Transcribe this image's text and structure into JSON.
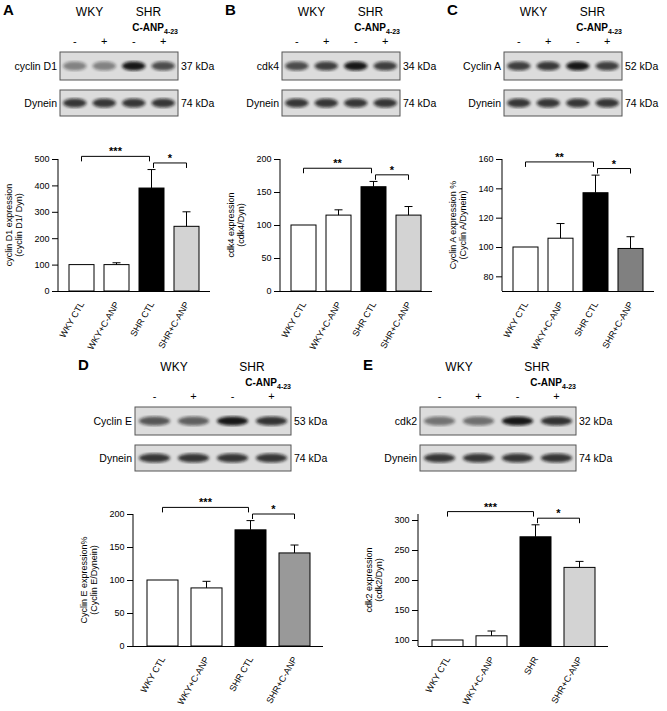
{
  "chart_data": [
    {
      "type": "bar",
      "panel": "A",
      "blot": {
        "groups": [
          "WKY",
          "SHR"
        ],
        "treatment": "C-ANP",
        "treatment_subscript": "4-23",
        "signs": [
          "-",
          "+",
          "-",
          "+"
        ],
        "protein": "cyclin D1",
        "protein_kda": "37 kDa",
        "loading": "Dynein",
        "loading_kda": "74 kDa"
      },
      "y_label": [
        "cyclin D1 expression",
        "(cyclin D1/ Dyn)"
      ],
      "categories": [
        "WKY CTL",
        "WKY+C-ANP",
        "SHR CTL",
        "SHR+C-ANP"
      ],
      "values": [
        100,
        100,
        390,
        245
      ],
      "errors": [
        0,
        7,
        70,
        55
      ],
      "colors": [
        "#ffffff",
        "#ffffff",
        "#000000",
        "#d3d3d3"
      ],
      "ylim": [
        0,
        500
      ],
      "yticks": [
        0,
        100,
        200,
        300,
        400,
        500
      ],
      "significance": [
        {
          "from": 0,
          "to": 2,
          "label": "***"
        },
        {
          "from": 2,
          "to": 3,
          "label": "*"
        }
      ]
    },
    {
      "type": "bar",
      "panel": "B",
      "blot": {
        "groups": [
          "WKY",
          "SHR"
        ],
        "treatment": "C-ANP",
        "treatment_subscript": "4-23",
        "signs": [
          "-",
          "+",
          "-",
          "+"
        ],
        "protein": "cdk4",
        "protein_kda": "34 kDa",
        "loading": "Dynein",
        "loading_kda": "74 kDa"
      },
      "y_label": [
        "cdk4 expression",
        "(cdk4/Dyn)"
      ],
      "categories": [
        "WKY CTL",
        "WKY+C-ANP",
        "SHR CTL",
        "SHR+C-ANP"
      ],
      "values": [
        100,
        115,
        158,
        115
      ],
      "errors": [
        0,
        8,
        8,
        13
      ],
      "colors": [
        "#ffffff",
        "#ffffff",
        "#000000",
        "#d3d3d3"
      ],
      "ylim": [
        0,
        200
      ],
      "yticks": [
        0,
        50,
        100,
        150,
        200
      ],
      "significance": [
        {
          "from": 0,
          "to": 2,
          "label": "**"
        },
        {
          "from": 2,
          "to": 3,
          "label": "*"
        }
      ]
    },
    {
      "type": "bar",
      "panel": "C",
      "blot": {
        "groups": [
          "WKY",
          "SHR"
        ],
        "treatment": "C-ANP",
        "treatment_subscript": "4-23",
        "signs": [
          "-",
          "+",
          "-",
          "+"
        ],
        "protein": "Cyclin A",
        "protein_kda": "52 kDa",
        "loading": "Dynein",
        "loading_kda": "74 kDa"
      },
      "y_label": [
        "Cyclin A expression %",
        "(Cyclin A/Dynein)"
      ],
      "categories": [
        "WKY CTL",
        "WKY+C-ANP",
        "SHR CTL",
        "SHR+C-ANP"
      ],
      "values": [
        100,
        106,
        137,
        99
      ],
      "errors": [
        0,
        10,
        12,
        8
      ],
      "colors": [
        "#ffffff",
        "#ffffff",
        "#000000",
        "#808080"
      ],
      "ylim": [
        70,
        160
      ],
      "yticks": [
        80,
        100,
        120,
        140,
        160
      ],
      "significance": [
        {
          "from": 0,
          "to": 2,
          "label": "**"
        },
        {
          "from": 2,
          "to": 3,
          "label": "*"
        }
      ]
    },
    {
      "type": "bar",
      "panel": "D",
      "blot": {
        "groups": [
          "WKY",
          "SHR"
        ],
        "treatment": "C-ANP",
        "treatment_subscript": "4-23",
        "signs": [
          "-",
          "+",
          "-",
          "+"
        ],
        "protein": "Cyclin E",
        "protein_kda": "53 kDa",
        "loading": "Dynein",
        "loading_kda": "74 kDa"
      },
      "y_label": [
        "Cyclin E expression%",
        "(Cyclin E/Dynein)"
      ],
      "categories": [
        "WKY CTL",
        "WKY+C-ANP",
        "SHR CTL",
        "SHR+C-ANP"
      ],
      "values": [
        100,
        88,
        176,
        141
      ],
      "errors": [
        0,
        10,
        14,
        12
      ],
      "colors": [
        "#ffffff",
        "#ffffff",
        "#000000",
        "#999999"
      ],
      "ylim": [
        0,
        200
      ],
      "yticks": [
        0,
        50,
        100,
        150,
        200
      ],
      "significance": [
        {
          "from": 0,
          "to": 2,
          "label": "***"
        },
        {
          "from": 2,
          "to": 3,
          "label": "*"
        }
      ]
    },
    {
      "type": "bar",
      "panel": "E",
      "blot": {
        "groups": [
          "WKY",
          "SHR"
        ],
        "treatment": "C-ANP",
        "treatment_subscript": "4-23",
        "signs": [
          "-",
          "+",
          "-",
          "+"
        ],
        "protein": "cdk2",
        "protein_kda": "32 kDa",
        "loading": "Dynein",
        "loading_kda": "74 kDa"
      },
      "y_label": [
        "cdk2 expression",
        "(cdk2/Dyn)"
      ],
      "categories": [
        "WKY CTL",
        "WKY+C-ANP",
        "SHR",
        "SHR+C-ANP"
      ],
      "values": [
        100,
        107,
        272,
        221
      ],
      "errors": [
        0,
        8,
        20,
        10
      ],
      "colors": [
        "#ffffff",
        "#ffffff",
        "#000000",
        "#d3d3d3"
      ],
      "ylim": [
        90,
        310
      ],
      "yticks": [
        100,
        150,
        200,
        250,
        300
      ],
      "significance": [
        {
          "from": 0,
          "to": 2,
          "label": "***"
        },
        {
          "from": 2,
          "to": 3,
          "label": "*"
        }
      ]
    }
  ]
}
